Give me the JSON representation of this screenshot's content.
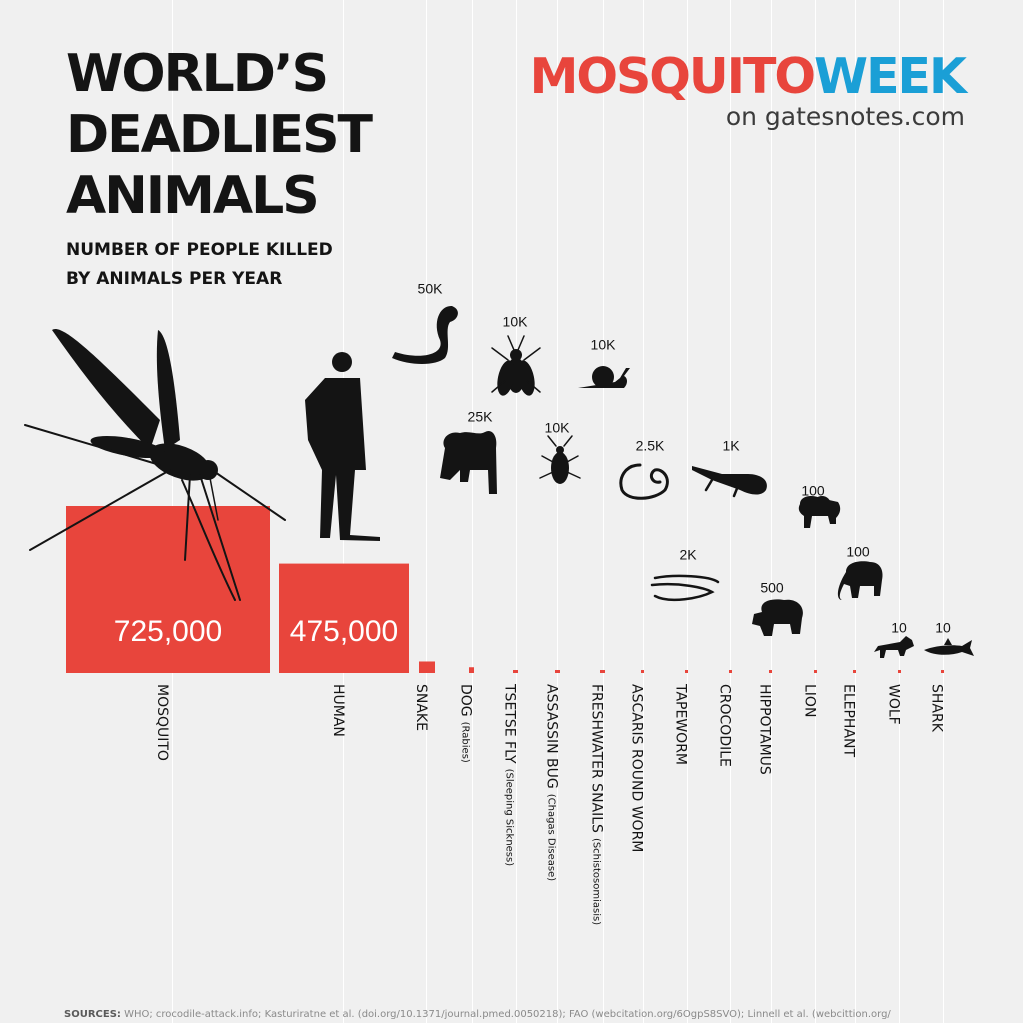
{
  "title_lines": [
    "WORLD’S",
    "DEADLIEST",
    "ANIMALS"
  ],
  "subtitle_lines": [
    "NUMBER OF PEOPLE KILLED",
    "BY ANIMALS PER YEAR"
  ],
  "logo": {
    "word1": "MOSQUITO",
    "word2": "WEEK",
    "sub": "on gatesnotes.com"
  },
  "colors": {
    "bar": "#e8453c",
    "text": "#141414",
    "background": "#f0f0f0",
    "logo_red": "#e8453c",
    "logo_blue": "#1a9fd6"
  },
  "chart_data": {
    "type": "bar",
    "title": "NUMBER OF PEOPLE KILLED BY ANIMALS PER YEAR",
    "categories": [
      "MOSQUITO",
      "HUMAN",
      "SNAKE",
      "DOG",
      "TSETSE FLY",
      "ASSASSIN BUG",
      "FRESHWATER SNAILS",
      "ASCARIS ROUND WORM",
      "TAPEWORM",
      "CROCODILE",
      "HIPPOTAMUS",
      "LION",
      "ELEPHANT",
      "WOLF",
      "SHARK"
    ],
    "category_notes": [
      "",
      "",
      "",
      "(Rabies)",
      "(Sleeping Sickness)",
      "(Chagas Disease)",
      "(Schistosomiasis)",
      "",
      "",
      "",
      "",
      "",
      "",
      "",
      ""
    ],
    "values": [
      725000,
      475000,
      50000,
      25000,
      10000,
      10000,
      10000,
      2500,
      2000,
      1000,
      500,
      100,
      100,
      10,
      10
    ],
    "value_labels": [
      "725,000",
      "475,000",
      "50K",
      "25K",
      "10K",
      "10K",
      "10K",
      "2.5K",
      "2K",
      "1K",
      "500",
      "100",
      "100",
      "10",
      "10"
    ],
    "icons": [
      "mosquito-icon",
      "human-icon",
      "snake-icon",
      "dog-icon",
      "tsetse-fly-icon",
      "assassin-bug-icon",
      "snail-icon",
      "roundworm-icon",
      "tapeworm-icon",
      "crocodile-icon",
      "hippo-icon",
      "lion-icon",
      "elephant-icon",
      "wolf-icon",
      "shark-icon"
    ]
  },
  "sources": {
    "label": "SOURCES:",
    "text": "WHO; crocodile-attack.info; Kasturiratne et al. (doi.org/10.1371/journal.pmed.0050218); FAO (webcitation.org/6OgpS8SVO); Linnell et al. (webcittion.org/"
  }
}
